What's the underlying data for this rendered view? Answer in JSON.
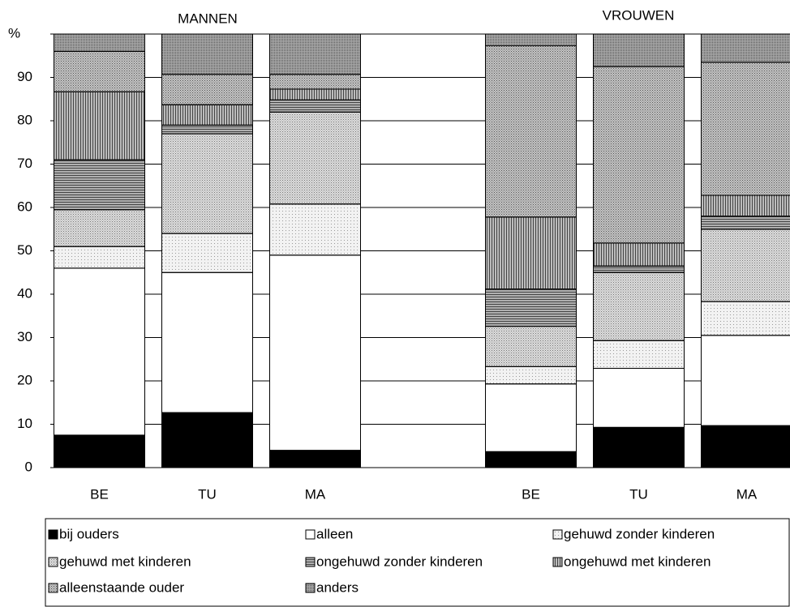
{
  "chart_data": {
    "type": "stacked-bar",
    "annotations": [
      "MANNEN",
      "VROUWEN"
    ],
    "categories": [
      "BE",
      "TU",
      "MA",
      null,
      "BE",
      "TU",
      "MA"
    ],
    "ylim": [
      0,
      100
    ],
    "yticks": [
      0,
      10,
      20,
      30,
      40,
      50,
      60,
      70,
      80,
      90,
      {
        "value": 100,
        "label": "%"
      }
    ],
    "grid": true,
    "series": [
      {
        "name": "bij ouders",
        "color": "#000000",
        "values": [
          7.5,
          12.7,
          4,
          null,
          3.7,
          9.3,
          9.7
        ]
      },
      {
        "name": "alleen",
        "color": "#ffffff",
        "values": [
          38.5,
          32.3,
          45,
          null,
          15.6,
          13.6,
          20.8
        ]
      },
      {
        "name": "gehuwd zonder kinderen",
        "color": "#f2f2f2",
        "values": [
          5,
          9,
          11.8,
          null,
          4,
          6.4,
          7.8
        ]
      },
      {
        "name": "gehuwd met kinderen",
        "color": "#dcdcdc",
        "values": [
          8.5,
          23,
          21.2,
          null,
          9.3,
          15.7,
          16.7
        ]
      },
      {
        "name": "ongehuwd zonder kinderen",
        "color": "#b0b0b0",
        "values": [
          11.5,
          2,
          2.8,
          null,
          8.6,
          1.5,
          3
        ]
      },
      {
        "name": "ongehuwd met kinderen",
        "color": "#bcbcbc",
        "values": [
          15.7,
          4.7,
          2.5,
          null,
          16.6,
          5.3,
          4.8
        ]
      },
      {
        "name": "alleenstaande ouder",
        "color": "#c4c4c4",
        "values": [
          9.3,
          7,
          3.4,
          null,
          39.5,
          40.7,
          30.7
        ]
      },
      {
        "name": "anders",
        "color": "#a8a8a8",
        "values": [
          4,
          9.3,
          9.3,
          null,
          2.7,
          7.5,
          6.5
        ]
      }
    ]
  }
}
